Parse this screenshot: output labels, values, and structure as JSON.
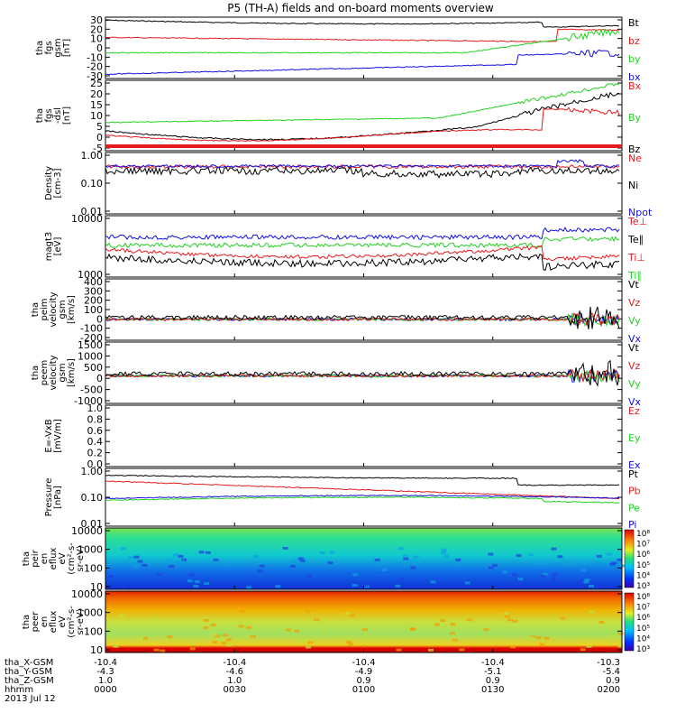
{
  "title": "P5 (TH-A) fields and on-board moments overview",
  "colors": {
    "black": "#000000",
    "red": "#e41a1c",
    "green": "#22d022",
    "blue": "#1010e0"
  },
  "panels": [
    {
      "id": "fgs",
      "ylabel": [
        "tha",
        "fgs",
        "gsm",
        "[nT]"
      ],
      "yticks": [
        "30",
        "20",
        "10",
        "0",
        "-10",
        "-20",
        "-30"
      ],
      "ylim": [
        -30,
        32
      ],
      "scale": "linear",
      "legend": [
        {
          "text": "Bt",
          "color": "black"
        },
        {
          "text": "bz",
          "color": "red"
        },
        {
          "text": "by",
          "color": "green"
        },
        {
          "text": "bx",
          "color": "blue"
        }
      ]
    },
    {
      "id": "fgs_dsl",
      "ylabel": [
        "tha",
        "fgs",
        "-dsl",
        "[nT]"
      ],
      "yticks": [
        "25",
        "20",
        "15",
        "10",
        "5",
        "0",
        "-5"
      ],
      "ylim": [
        -7,
        25
      ],
      "scale": "linear",
      "legend": [
        {
          "text": "Bx",
          "color": "red"
        },
        {
          "text": "By",
          "color": "green"
        },
        {
          "text": "Bz",
          "color": "black"
        }
      ]
    },
    {
      "id": "density",
      "ylabel": [
        "Density",
        "[cm-3]"
      ],
      "yticks": [
        "1.00",
        "0.10",
        "0.01"
      ],
      "ylim": [
        0.01,
        1.2
      ],
      "scale": "log",
      "legend": [
        {
          "text": "Ne",
          "color": "red"
        },
        {
          "text": "Ni",
          "color": "black"
        },
        {
          "text": "Npot",
          "color": "blue"
        }
      ]
    },
    {
      "id": "temp",
      "ylabel": [
        "magt3",
        "[eV]"
      ],
      "yticks": [
        "10000",
        "1000"
      ],
      "ylim": [
        1000,
        10000
      ],
      "scale": "log",
      "legend": [
        {
          "text": "Te⊥",
          "color": "red"
        },
        {
          "text": "Te∥",
          "color": "black"
        },
        {
          "text": "Ti⊥",
          "color": "red"
        },
        {
          "text": "Ti∥",
          "color": "green"
        }
      ]
    },
    {
      "id": "ivel",
      "ylabel": [
        "tha",
        "peim",
        "velocity",
        "gsm",
        "[km/s]"
      ],
      "yticks": [
        "400",
        "300",
        "200",
        "100",
        "0",
        "-100",
        "-200"
      ],
      "ylim": [
        -200,
        400
      ],
      "scale": "linear",
      "legend": [
        {
          "text": "Vt",
          "color": "black"
        },
        {
          "text": "Vz",
          "color": "red"
        },
        {
          "text": "Vy",
          "color": "green"
        },
        {
          "text": "Vx",
          "color": "blue"
        }
      ]
    },
    {
      "id": "evel",
      "ylabel": [
        "tha",
        "peem",
        "velocity",
        "gsm",
        "[km/s]"
      ],
      "yticks": [
        "1500",
        "1000",
        "500",
        "0",
        "-500",
        "-1000"
      ],
      "ylim": [
        -1200,
        1500
      ],
      "scale": "linear",
      "legend": [
        {
          "text": "Vt",
          "color": "black"
        },
        {
          "text": "Vz",
          "color": "red"
        },
        {
          "text": "Vy",
          "color": "green"
        },
        {
          "text": "Vx",
          "color": "blue"
        }
      ]
    },
    {
      "id": "efield",
      "ylabel": [
        "E=-VxB",
        "[mV/m]"
      ],
      "yticks": [
        "1.0",
        "0.8",
        "0.6",
        "0.4",
        "0.2",
        "0.0"
      ],
      "ylim": [
        0,
        1
      ],
      "scale": "linear",
      "legend": [
        {
          "text": "Ez",
          "color": "red"
        },
        {
          "text": "Ey",
          "color": "green"
        },
        {
          "text": "Ex",
          "color": "blue"
        }
      ]
    },
    {
      "id": "pressure",
      "ylabel": [
        "Pressure",
        "[nPa]"
      ],
      "yticks": [
        "1.00",
        "0.10",
        "0.01"
      ],
      "ylim": [
        0.01,
        1.2
      ],
      "scale": "log",
      "legend": [
        {
          "text": "Pt",
          "color": "black"
        },
        {
          "text": "Pb",
          "color": "red"
        },
        {
          "text": "Pe",
          "color": "green"
        },
        {
          "text": "Pi",
          "color": "blue"
        }
      ]
    },
    {
      "id": "ion_spec",
      "ylabel": [
        "tha",
        "peir",
        "en",
        "eflux",
        "eV",
        "(cm²-s-",
        "sr-eV)"
      ],
      "yticks": [
        "10000",
        "1000",
        "100",
        "10"
      ],
      "ylim": [
        10,
        20000
      ],
      "scale": "log",
      "colorbar": [
        "10⁸",
        "10⁷",
        "10⁶",
        "10⁵",
        "10⁴",
        "10³"
      ]
    },
    {
      "id": "ele_spec",
      "ylabel": [
        "tha",
        "peer",
        "en",
        "eflux",
        "eV",
        "(cm²-s-",
        "sr-eV)"
      ],
      "yticks": [
        "10000",
        "1000",
        "100",
        "10"
      ],
      "ylim": [
        10,
        20000
      ],
      "scale": "log",
      "colorbar": [
        "10⁸",
        "10⁷",
        "10⁶",
        "10⁵",
        "10⁴",
        "10³"
      ]
    }
  ],
  "time_axis": {
    "rows": [
      {
        "label": "tha_X-GSM",
        "values": [
          "-10.4",
          "-10.4",
          "-10.4",
          "-10.4",
          "-10.3"
        ]
      },
      {
        "label": "tha_Y-GSM",
        "values": [
          "-4.3",
          "-4.6",
          "-4.9",
          "-5.1",
          "-5.4"
        ]
      },
      {
        "label": "tha_Z-GSM",
        "values": [
          "1.0",
          "1.0",
          "0.9",
          "0.9",
          "0.9"
        ]
      },
      {
        "label": "hhmm",
        "values": [
          "0000",
          "0030",
          "0100",
          "0130",
          "0200"
        ]
      }
    ],
    "date": "2013 Jul 12"
  },
  "chart_data": [
    {
      "type": "line",
      "title": "fgs gsm [nT]",
      "x": [
        0,
        30,
        60,
        90,
        120
      ],
      "series": [
        {
          "name": "Bt",
          "values": [
            30,
            32,
            28,
            22,
            28
          ]
        },
        {
          "name": "bz",
          "values": [
            10,
            8,
            6,
            5,
            12
          ]
        },
        {
          "name": "by",
          "values": [
            -5,
            -5,
            -3,
            -2,
            15
          ]
        },
        {
          "name": "bx",
          "values": [
            -27,
            -22,
            -18,
            -15,
            -5
          ]
        }
      ]
    },
    {
      "type": "line",
      "title": "fgs dsl [nT]",
      "x": [
        0,
        30,
        60,
        90,
        120
      ],
      "series": [
        {
          "name": "By",
          "values": [
            5,
            5,
            5,
            7,
            17
          ]
        },
        {
          "name": "Bz",
          "values": [
            1,
            0,
            -2,
            1,
            8
          ]
        },
        {
          "name": "Bx",
          "values": [
            2,
            0,
            -2,
            -1,
            3
          ]
        }
      ]
    },
    {
      "type": "line",
      "title": "Density [cm-3]",
      "x": [
        0,
        30,
        60,
        90,
        120
      ],
      "series": [
        {
          "name": "Ne",
          "values": [
            0.3,
            0.3,
            0.3,
            0.3,
            0.3
          ]
        },
        {
          "name": "Ni",
          "values": [
            0.18,
            0.2,
            0.2,
            0.18,
            0.15
          ]
        },
        {
          "name": "Npot",
          "values": [
            0.3,
            0.3,
            0.3,
            0.35,
            0.5
          ]
        }
      ]
    },
    {
      "type": "line",
      "title": "Pressure [nPa]",
      "x": [
        0,
        30,
        60,
        90,
        120
      ],
      "series": [
        {
          "name": "Pt",
          "values": [
            0.5,
            0.55,
            0.5,
            0.4,
            0.3
          ]
        },
        {
          "name": "Pb",
          "values": [
            0.4,
            0.3,
            0.22,
            0.15,
            0.1
          ]
        },
        {
          "name": "Pe",
          "values": [
            0.07,
            0.08,
            0.09,
            0.08,
            0.05
          ]
        },
        {
          "name": "Pi",
          "values": [
            0.08,
            0.09,
            0.09,
            0.08,
            0.06
          ]
        }
      ]
    }
  ]
}
